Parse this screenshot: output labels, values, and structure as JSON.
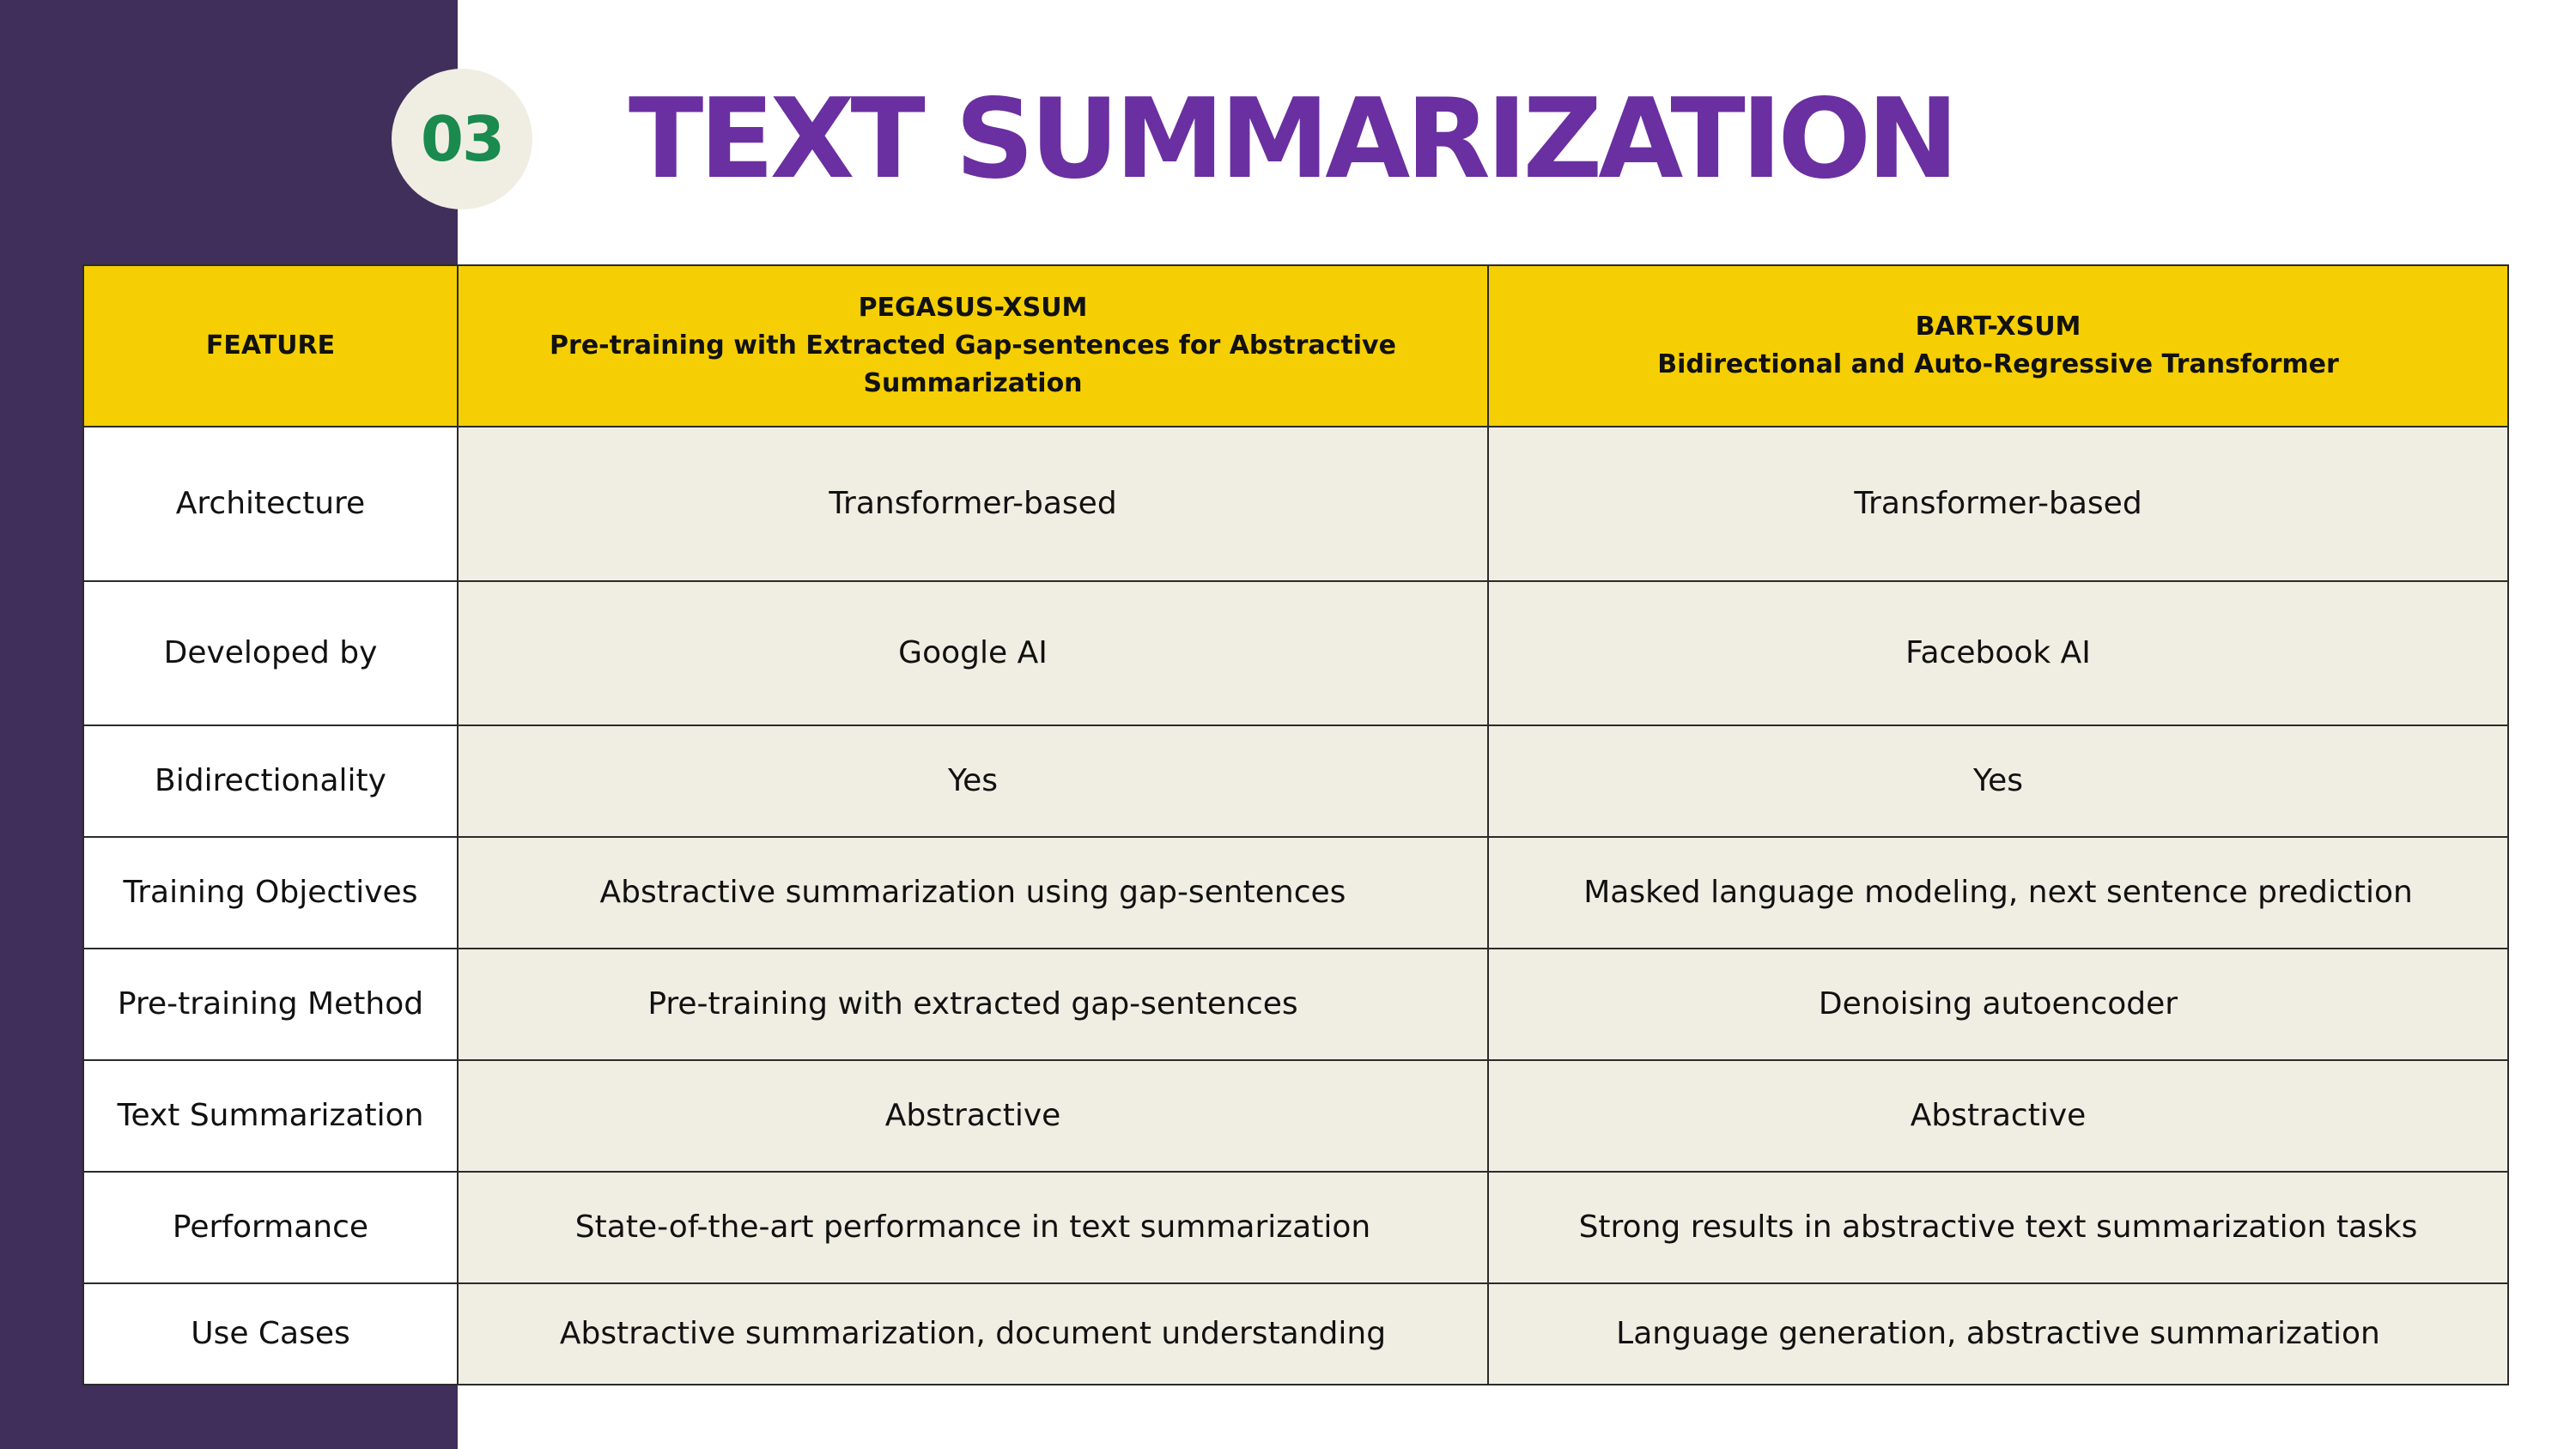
{
  "slide": {
    "number": "03",
    "title": "TEXT SUMMARIZATION"
  },
  "colors": {
    "sidebar": "#3f2f5a",
    "title": "#6a2fa0",
    "badge_text": "#1a8a4f",
    "badge_bg": "#f0eee3",
    "header_bg": "#f5cf03",
    "cell_bg": "#f0eee3"
  },
  "table": {
    "headers": {
      "feature": "FEATURE",
      "pegasus": {
        "name": "PEGASUS-XSUM",
        "full": "Pre-training with Extracted Gap-sentences for Abstractive Summarization"
      },
      "bart": {
        "name": "BART-XSUM",
        "full": "Bidirectional and Auto-Regressive Transformer"
      }
    },
    "rows": [
      {
        "feature": "Architecture",
        "pegasus": "Transformer-based",
        "bart": "Transformer-based"
      },
      {
        "feature": "Developed by",
        "pegasus": "Google AI",
        "bart": "Facebook AI"
      },
      {
        "feature": "Bidirectionality",
        "pegasus": "Yes",
        "bart": "Yes"
      },
      {
        "feature": "Training Objectives",
        "pegasus": "Abstractive summarization using gap-sentences",
        "bart": "Masked language modeling, next sentence prediction"
      },
      {
        "feature": "Pre-training Method",
        "pegasus": "Pre-training with extracted gap-sentences",
        "bart": "Denoising autoencoder"
      },
      {
        "feature": "Text Summarization",
        "pegasus": "Abstractive",
        "bart": "Abstractive"
      },
      {
        "feature": "Performance",
        "pegasus": "State-of-the-art performance in text summarization",
        "bart": "Strong results in abstractive text summarization tasks"
      },
      {
        "feature": "Use Cases",
        "pegasus": "Abstractive summarization, document understanding",
        "bart": "Language generation, abstractive summarization"
      }
    ]
  }
}
